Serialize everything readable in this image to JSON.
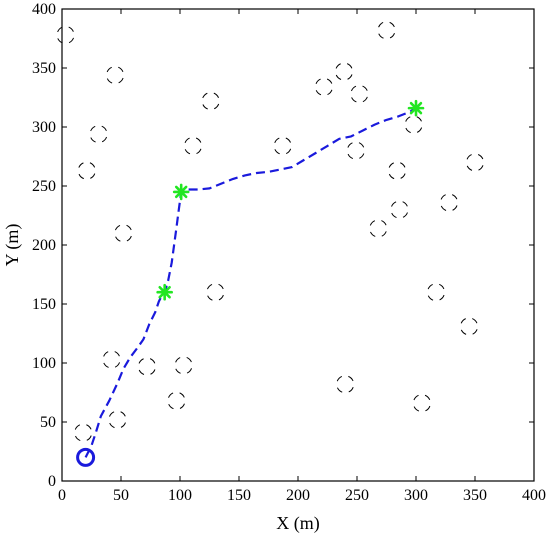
{
  "chart_data": {
    "type": "scatter",
    "title": "",
    "xlabel": "X (m)",
    "ylabel": "Y (m)",
    "xlim": [
      0,
      400
    ],
    "ylim": [
      0,
      400
    ],
    "xticks": [
      0,
      50,
      100,
      150,
      200,
      250,
      300,
      350,
      400
    ],
    "yticks": [
      0,
      50,
      100,
      150,
      200,
      250,
      300,
      350,
      400
    ],
    "grid": false,
    "legend": "none",
    "start": {
      "x": 20,
      "y": 20
    },
    "waypoints": [
      {
        "x": 87,
        "y": 160
      },
      {
        "x": 101,
        "y": 245
      },
      {
        "x": 300,
        "y": 316
      }
    ],
    "path": {
      "style": "dashed",
      "x": [
        20,
        25,
        29,
        33,
        40,
        47,
        52,
        58,
        64,
        69,
        74,
        79,
        82,
        84,
        87,
        90,
        93,
        95,
        97,
        99,
        101,
        105,
        115,
        125,
        135,
        145,
        155,
        165,
        175,
        185,
        195,
        205,
        215,
        225,
        235,
        245,
        255,
        265,
        275,
        285,
        295,
        300
      ],
      "y": [
        20,
        30,
        42,
        55,
        68,
        83,
        95,
        105,
        113,
        120,
        133,
        143,
        152,
        156,
        160,
        170,
        185,
        200,
        215,
        230,
        245,
        247,
        247,
        248,
        252,
        256,
        259,
        261,
        262,
        264,
        266,
        272,
        278,
        284,
        290,
        292,
        297,
        302,
        306,
        309,
        313,
        316
      ]
    },
    "obstacles": [
      {
        "x": 3,
        "y": 378
      },
      {
        "x": 45,
        "y": 344
      },
      {
        "x": 31,
        "y": 294
      },
      {
        "x": 21,
        "y": 263
      },
      {
        "x": 52,
        "y": 210
      },
      {
        "x": 126,
        "y": 322
      },
      {
        "x": 111,
        "y": 284
      },
      {
        "x": 130,
        "y": 160
      },
      {
        "x": 42,
        "y": 103
      },
      {
        "x": 72,
        "y": 97
      },
      {
        "x": 103,
        "y": 98
      },
      {
        "x": 97,
        "y": 68
      },
      {
        "x": 47,
        "y": 52
      },
      {
        "x": 18,
        "y": 41
      },
      {
        "x": 187,
        "y": 284
      },
      {
        "x": 222,
        "y": 334
      },
      {
        "x": 239,
        "y": 347
      },
      {
        "x": 252,
        "y": 328
      },
      {
        "x": 275,
        "y": 382
      },
      {
        "x": 249,
        "y": 280
      },
      {
        "x": 298,
        "y": 302
      },
      {
        "x": 284,
        "y": 263
      },
      {
        "x": 286,
        "y": 230
      },
      {
        "x": 268,
        "y": 214
      },
      {
        "x": 350,
        "y": 270
      },
      {
        "x": 328,
        "y": 236
      },
      {
        "x": 317,
        "y": 160
      },
      {
        "x": 345,
        "y": 131
      },
      {
        "x": 240,
        "y": 82
      },
      {
        "x": 305,
        "y": 66
      }
    ],
    "colors": {
      "path": "#1a1adc",
      "start": "#1a1adc",
      "waypoint": "#22e622",
      "obstacle": "#000000"
    }
  }
}
